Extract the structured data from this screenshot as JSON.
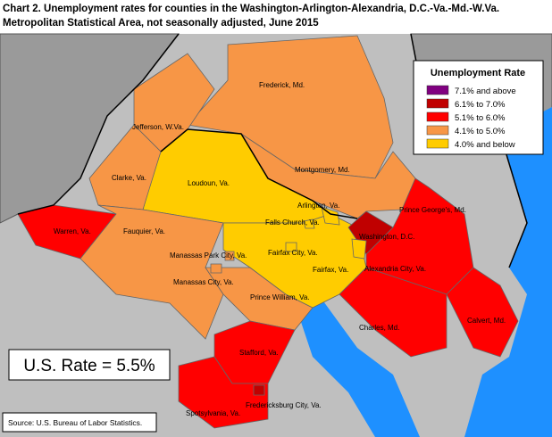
{
  "title": [
    "Chart 2. Unemployment rates for counties in the Washington-Arlington-Alexandria, D.C.-Va.-Md.-W.Va.",
    "Metropolitan Statistical Area, not seasonally adjusted, June 2015"
  ],
  "legend": {
    "title": "Unemployment Rate",
    "items": [
      {
        "label": "7.1% and above",
        "color": "#800080"
      },
      {
        "label": "6.1% to 7.0%",
        "color": "#c00000"
      },
      {
        "label": "5.1% to 6.0%",
        "color": "#ff0000"
      },
      {
        "label": "4.1% to 5.0%",
        "color": "#f79646"
      },
      {
        "label": "4.0% and below",
        "color": "#ffcc00"
      }
    ]
  },
  "counties": [
    {
      "name": "Frederick, Md.",
      "color": "#f79646"
    },
    {
      "name": "Jefferson, W.Va.",
      "color": "#f79646"
    },
    {
      "name": "Montgomery, Md.",
      "color": "#f79646"
    },
    {
      "name": "Loudoun, Va.",
      "color": "#ffcc00"
    },
    {
      "name": "Clarke, Va.",
      "color": "#f79646"
    },
    {
      "name": "Warren, Va.",
      "color": "#ff0000"
    },
    {
      "name": "Fauquier, Va.",
      "color": "#f79646"
    },
    {
      "name": "Prince William, Va.",
      "color": "#f79646"
    },
    {
      "name": "Fairfax, Va.",
      "color": "#ffcc00"
    },
    {
      "name": "Washington, D.C.",
      "color": "#c00000"
    },
    {
      "name": "Prince George's, Md.",
      "color": "#ff0000"
    },
    {
      "name": "Charles, Md.",
      "color": "#ff0000"
    },
    {
      "name": "Calvert, Md.",
      "color": "#ff0000"
    },
    {
      "name": "Stafford, Va.",
      "color": "#ff0000"
    },
    {
      "name": "Spotsylvania, Va.",
      "color": "#ff0000"
    },
    {
      "name": "Fredericksburg City, Va.",
      "color": "#c00000"
    },
    {
      "name": "Arlington, Va.",
      "color": "#ffcc00"
    },
    {
      "name": "Falls Church, Va.",
      "color": "#ffcc00"
    },
    {
      "name": "Fairfax City, Va.",
      "color": "#ffcc00"
    },
    {
      "name": "Alexandria City, Va.",
      "color": "#ffcc00"
    },
    {
      "name": "Manassas Park City, Va.",
      "color": "#f79646"
    },
    {
      "name": "Manassas City, Va.",
      "color": "#f79646"
    }
  ],
  "us_rate": "U.S. Rate = 5.5%",
  "source": "Source: U.S. Bureau of Labor Statistics."
}
